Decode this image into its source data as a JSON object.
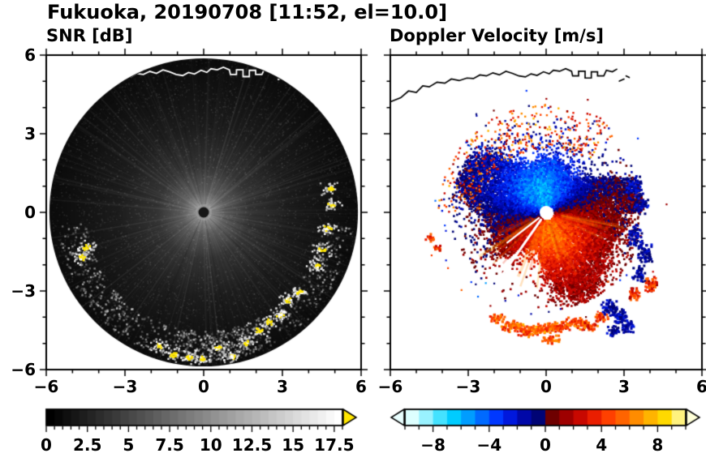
{
  "title": "Fukuoka, 20190708 [11:52, el=10.0]",
  "panels": {
    "snr": {
      "title": "SNR [dB]",
      "x_tick_labels": [
        "−6",
        "−3",
        "0",
        "3",
        "6"
      ],
      "y_tick_labels": [
        "6",
        "3",
        "0",
        "−3",
        "−6"
      ],
      "colorbar_labels": [
        "0",
        "2.5",
        "5",
        "7.5",
        "10",
        "12.5",
        "15",
        "17.5"
      ]
    },
    "velocity": {
      "title": "Doppler Velocity [m/s]",
      "x_tick_labels": [
        "−6",
        "−3",
        "0",
        "3",
        "6"
      ],
      "colorbar_labels": [
        "−8",
        "−4",
        "0",
        "4",
        "8"
      ]
    }
  },
  "chart_data": [
    {
      "type": "heatmap",
      "panel": "left",
      "title": "SNR [dB]",
      "site": "Fukuoka",
      "date": "20190708",
      "time": "11:52",
      "elevation_deg": 10.0,
      "xlim": [
        -6,
        6
      ],
      "ylim": [
        -6,
        6
      ],
      "x_major_ticks": [
        -6,
        -3,
        0,
        3,
        6
      ],
      "y_major_ticks": [
        -6,
        -3,
        0,
        3,
        6
      ],
      "minor_tick_step": 1,
      "colorbar": {
        "range": [
          0,
          18
        ],
        "labeled_ticks": [
          0,
          2.5,
          5,
          7.5,
          10,
          12.5,
          15,
          17.5
        ],
        "minor_tick_step": 0.5,
        "colormap": "grayscale",
        "start_color": "#000000",
        "end_color": "#ffffff",
        "over_arrow_color": "#ffe600"
      },
      "scene": "Circular radar PPI disk of radius ~5.9 centered at the origin; SNR highest near the radar (light gray) decaying to near-black at the rim with radial spoke texture; strong white/yellow clutter echoes along the southern and eastern rim and two small echoes on the west rim; small dark blind spot at the center; white coastline overlay across the top of the disk."
    },
    {
      "type": "heatmap",
      "panel": "right",
      "title": "Doppler Velocity [m/s]",
      "xlim": [
        -6,
        6
      ],
      "ylim": [
        -6,
        6
      ],
      "x_major_ticks": [
        -6,
        -3,
        0,
        3,
        6
      ],
      "y_major_ticks": [
        -6,
        -3,
        0,
        3,
        6
      ],
      "minor_tick_step": 1,
      "colorbar": {
        "range": [
          -10,
          10
        ],
        "labeled_ticks": [
          -8,
          -4,
          0,
          4,
          8
        ],
        "minor_tick_step": 1,
        "n_segments": 20,
        "segment_colors": [
          "#ddffff",
          "#99f2ff",
          "#44e2ff",
          "#00ccff",
          "#009dff",
          "#006aff",
          "#0038ff",
          "#0018dd",
          "#0008a8",
          "#000475",
          "#6e0000",
          "#9e0000",
          "#c80800",
          "#ea1e00",
          "#ff4000",
          "#ff6400",
          "#ff8c00",
          "#ffb400",
          "#ffd900",
          "#fff27e"
        ],
        "under_arrow_color": "#eaffff",
        "over_arrow_color": "#ffffd8"
      },
      "zero_isodop_angle_deg": 15,
      "scene": "Doppler velocity dipole around the radar: negative velocities (blue, toward radar) north of the site, positive velocities (red/orange, away) to the south and east; ragged speckled blob edges with scattered orange echoes on the northern fringe, dark-navy patches to the east, a detached band of orange and navy echoes near y = -4 to -4.7, thin white data-gap streaks southwest of the radar, white dot at the radar location, black coastline overlay along the top."
    }
  ]
}
